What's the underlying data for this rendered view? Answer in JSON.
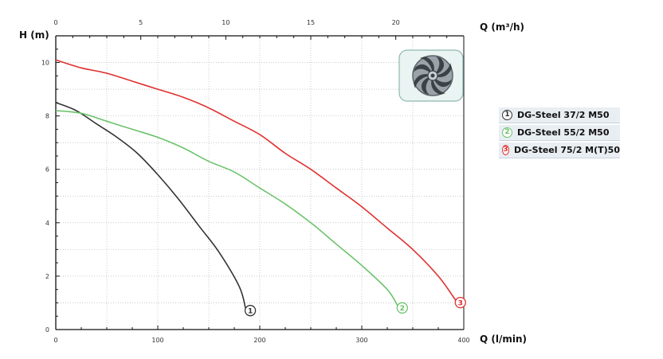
{
  "chart_data": {
    "type": "line",
    "title": "",
    "ylabel": "H (m)",
    "xlabel_bottom": "Q (l/min)",
    "xlabel_top": "Q (m³/h)",
    "xlim": [
      0,
      400
    ],
    "ylim": [
      0,
      11
    ],
    "x_ticks": [
      0,
      100,
      200,
      300,
      400
    ],
    "x_top_ticks": [
      0,
      5,
      10,
      15,
      20
    ],
    "y_ticks": [
      0,
      2,
      4,
      6,
      8,
      10
    ],
    "grid": true,
    "legend_position": "right",
    "series": [
      {
        "name": "DG-Steel 37/2 M50",
        "marker": "1",
        "color": "#333333",
        "x": [
          0,
          20,
          40,
          60,
          80,
          100,
          120,
          140,
          160,
          180,
          186
        ],
        "y": [
          8.5,
          8.2,
          7.7,
          7.2,
          6.6,
          5.8,
          4.9,
          3.9,
          2.9,
          1.6,
          0.8
        ]
      },
      {
        "name": "DG-Steel 55/2 M50",
        "marker": "2",
        "color": "#6cc36c",
        "x": [
          0,
          25,
          50,
          75,
          100,
          125,
          150,
          175,
          200,
          225,
          250,
          275,
          300,
          325,
          335
        ],
        "y": [
          8.2,
          8.1,
          7.8,
          7.5,
          7.2,
          6.8,
          6.3,
          5.9,
          5.3,
          4.7,
          4.0,
          3.2,
          2.4,
          1.5,
          0.9
        ]
      },
      {
        "name": "DG-Steel 75/2 M(T)50",
        "marker": "3",
        "color": "#e03030",
        "x": [
          0,
          25,
          50,
          75,
          100,
          125,
          150,
          175,
          200,
          225,
          250,
          275,
          300,
          325,
          350,
          375,
          392
        ],
        "y": [
          10.1,
          9.8,
          9.6,
          9.3,
          9.0,
          8.7,
          8.3,
          7.8,
          7.3,
          6.6,
          6.0,
          5.3,
          4.6,
          3.8,
          3.0,
          2.0,
          1.1
        ]
      }
    ]
  },
  "colors": {
    "axis": "#111111",
    "grid": "#aaaaaa"
  },
  "icons": {
    "pump_image": "impeller-icon"
  }
}
